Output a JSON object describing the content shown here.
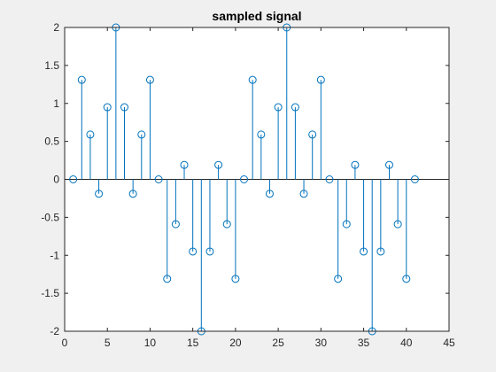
{
  "chart_data": {
    "type": "stem",
    "title": "sampled signal",
    "xlabel": "",
    "ylabel": "",
    "xlim": [
      0,
      45
    ],
    "ylim": [
      -2,
      2
    ],
    "xticks": [
      0,
      5,
      10,
      15,
      20,
      25,
      30,
      35,
      40,
      45
    ],
    "xtick_labels": [
      "0",
      "5",
      "10",
      "15",
      "20",
      "25",
      "30",
      "35",
      "40",
      "45"
    ],
    "yticks": [
      2,
      1.5,
      1,
      0.5,
      0,
      -0.5,
      -1,
      -1.5,
      -2
    ],
    "ytick_labels": [
      "2",
      "1.5",
      "1",
      "0.5",
      "0",
      "-0.5",
      "-1",
      "-1.5",
      "-2"
    ],
    "grid": false,
    "baseline": 0,
    "series": [
      {
        "color": "#0072bd",
        "x": [
          1,
          2,
          3,
          4,
          5,
          6,
          7,
          8,
          9,
          10,
          11,
          12,
          13,
          14,
          15,
          16,
          17,
          18,
          19,
          20,
          21,
          22,
          23,
          24,
          25,
          26,
          27,
          28,
          29,
          30,
          31,
          32,
          33,
          34,
          35,
          36,
          37,
          38,
          39,
          40,
          41
        ],
        "y": [
          0,
          1.31,
          0.59,
          -0.19,
          0.95,
          2,
          0.95,
          -0.19,
          0.59,
          1.31,
          0,
          -1.31,
          -0.59,
          0.19,
          -0.95,
          -2,
          -0.95,
          0.19,
          -0.59,
          -1.31,
          0,
          1.31,
          0.59,
          -0.19,
          0.95,
          2,
          0.95,
          -0.19,
          0.59,
          1.31,
          0,
          -1.31,
          -0.59,
          0.19,
          -0.95,
          -2,
          -0.95,
          0.19,
          -0.59,
          -1.31,
          0
        ]
      }
    ]
  }
}
